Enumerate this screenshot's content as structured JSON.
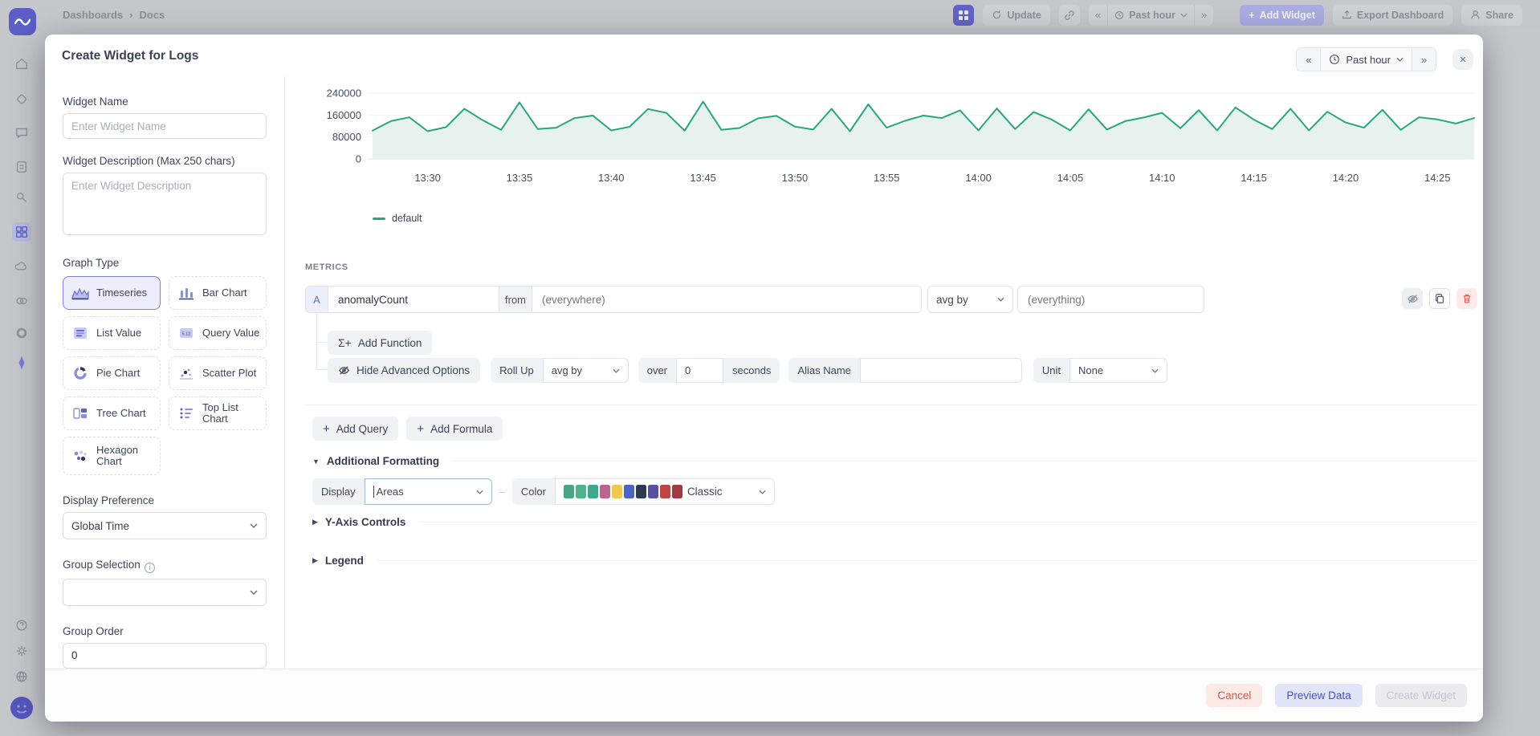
{
  "icons": {
    "back": "«",
    "forward": "»",
    "close": "✕",
    "plus": "+",
    "dash": "–",
    "caret_down": "▼",
    "caret_right": "▶",
    "breadcrumb_sep": "›",
    "info": "i",
    "sigma": "Σ+"
  },
  "backdrop": {
    "breadcrumb_1": "Dashboards",
    "breadcrumb_2": "Docs",
    "update": "Update",
    "time_range": "Past hour",
    "add_widget": "Add Widget",
    "export": "Export Dashboard",
    "share": "Share"
  },
  "modal": {
    "title": "Create Widget for Logs",
    "time_range": "Past hour",
    "form": {
      "widget_name_label": "Widget Name",
      "widget_name_placeholder": "Enter Widget Name",
      "widget_description_label": "Widget Description (Max 250 chars)",
      "widget_description_placeholder": "Enter Widget Description",
      "graph_type_label": "Graph Type",
      "graph_types": [
        {
          "label": "Timeseries"
        },
        {
          "label": "Bar Chart"
        },
        {
          "label": "List Value"
        },
        {
          "label": "Query Value"
        },
        {
          "label": "Pie Chart"
        },
        {
          "label": "Scatter Plot"
        },
        {
          "label": "Tree Chart"
        },
        {
          "label": "Top List Chart"
        },
        {
          "label": "Hexagon Chart"
        }
      ],
      "display_preference_label": "Display Preference",
      "display_preference_value": "Global Time",
      "group_selection_label": "Group Selection",
      "group_order_label": "Group Order",
      "group_order_value": "0"
    },
    "metrics": {
      "heading": "METRICS",
      "query_letter": "A",
      "metric_value": "anomalyCount",
      "from_label": "from",
      "from_placeholder": "(everywhere)",
      "agg_value": "avg by",
      "agg_placeholder": "(everything)",
      "add_function": "Add Function",
      "hide_advanced": "Hide Advanced Options",
      "rollup_label": "Roll Up",
      "rollup_value": "avg by",
      "over_label": "over",
      "over_value": "0",
      "seconds_label": "seconds",
      "alias_label": "Alias Name",
      "unit_label": "Unit",
      "unit_value": "None",
      "add_query": "Add Query",
      "add_formula": "Add Formula"
    },
    "formatting": {
      "heading": "Additional Formatting",
      "display_label": "Display",
      "display_value": "Areas",
      "color_label": "Color",
      "color_value": "Classic",
      "palette": [
        "#4aa584",
        "#4db28d",
        "#3ca98a",
        "#bd6590",
        "#eec94f",
        "#4f63c5",
        "#2e3a50",
        "#56509f",
        "#c14444",
        "#9e3a40"
      ]
    },
    "sections": {
      "y_axis": "Y-Axis Controls",
      "legend": "Legend"
    },
    "footer": {
      "cancel": "Cancel",
      "preview": "Preview Data",
      "create": "Create Widget"
    }
  },
  "chart_data": {
    "type": "area",
    "title": "",
    "xlabel": "",
    "ylabel": "",
    "ylim": [
      0,
      240000
    ],
    "y_ticks": [
      0,
      80000,
      160000,
      240000
    ],
    "x_tick_labels": [
      "13:30",
      "13:35",
      "13:40",
      "13:45",
      "13:50",
      "13:55",
      "14:00",
      "14:05",
      "14:10",
      "14:15",
      "14:20",
      "14:25"
    ],
    "x_tick_indices": [
      3,
      8,
      13,
      18,
      23,
      28,
      33,
      38,
      43,
      48,
      53,
      58
    ],
    "grid": true,
    "legend_position": "bottom-left",
    "line_color": "#2aa580",
    "fill_color": "#e7f2ee",
    "series": [
      {
        "name": "default",
        "values": [
          103000,
          138000,
          152000,
          101000,
          116000,
          183000,
          141000,
          106000,
          206000,
          109000,
          114000,
          149000,
          158000,
          104000,
          117000,
          182000,
          168000,
          103000,
          209000,
          106000,
          113000,
          148000,
          157000,
          118000,
          107000,
          183000,
          101000,
          199000,
          114000,
          139000,
          158000,
          149000,
          177000,
          104000,
          184000,
          109000,
          171000,
          143000,
          104000,
          181000,
          107000,
          138000,
          151000,
          168000,
          112000,
          178000,
          104000,
          188000,
          143000,
          109000,
          183000,
          104000,
          172000,
          133000,
          114000,
          179000,
          106000,
          152000,
          144000,
          129000,
          149000
        ]
      }
    ]
  }
}
